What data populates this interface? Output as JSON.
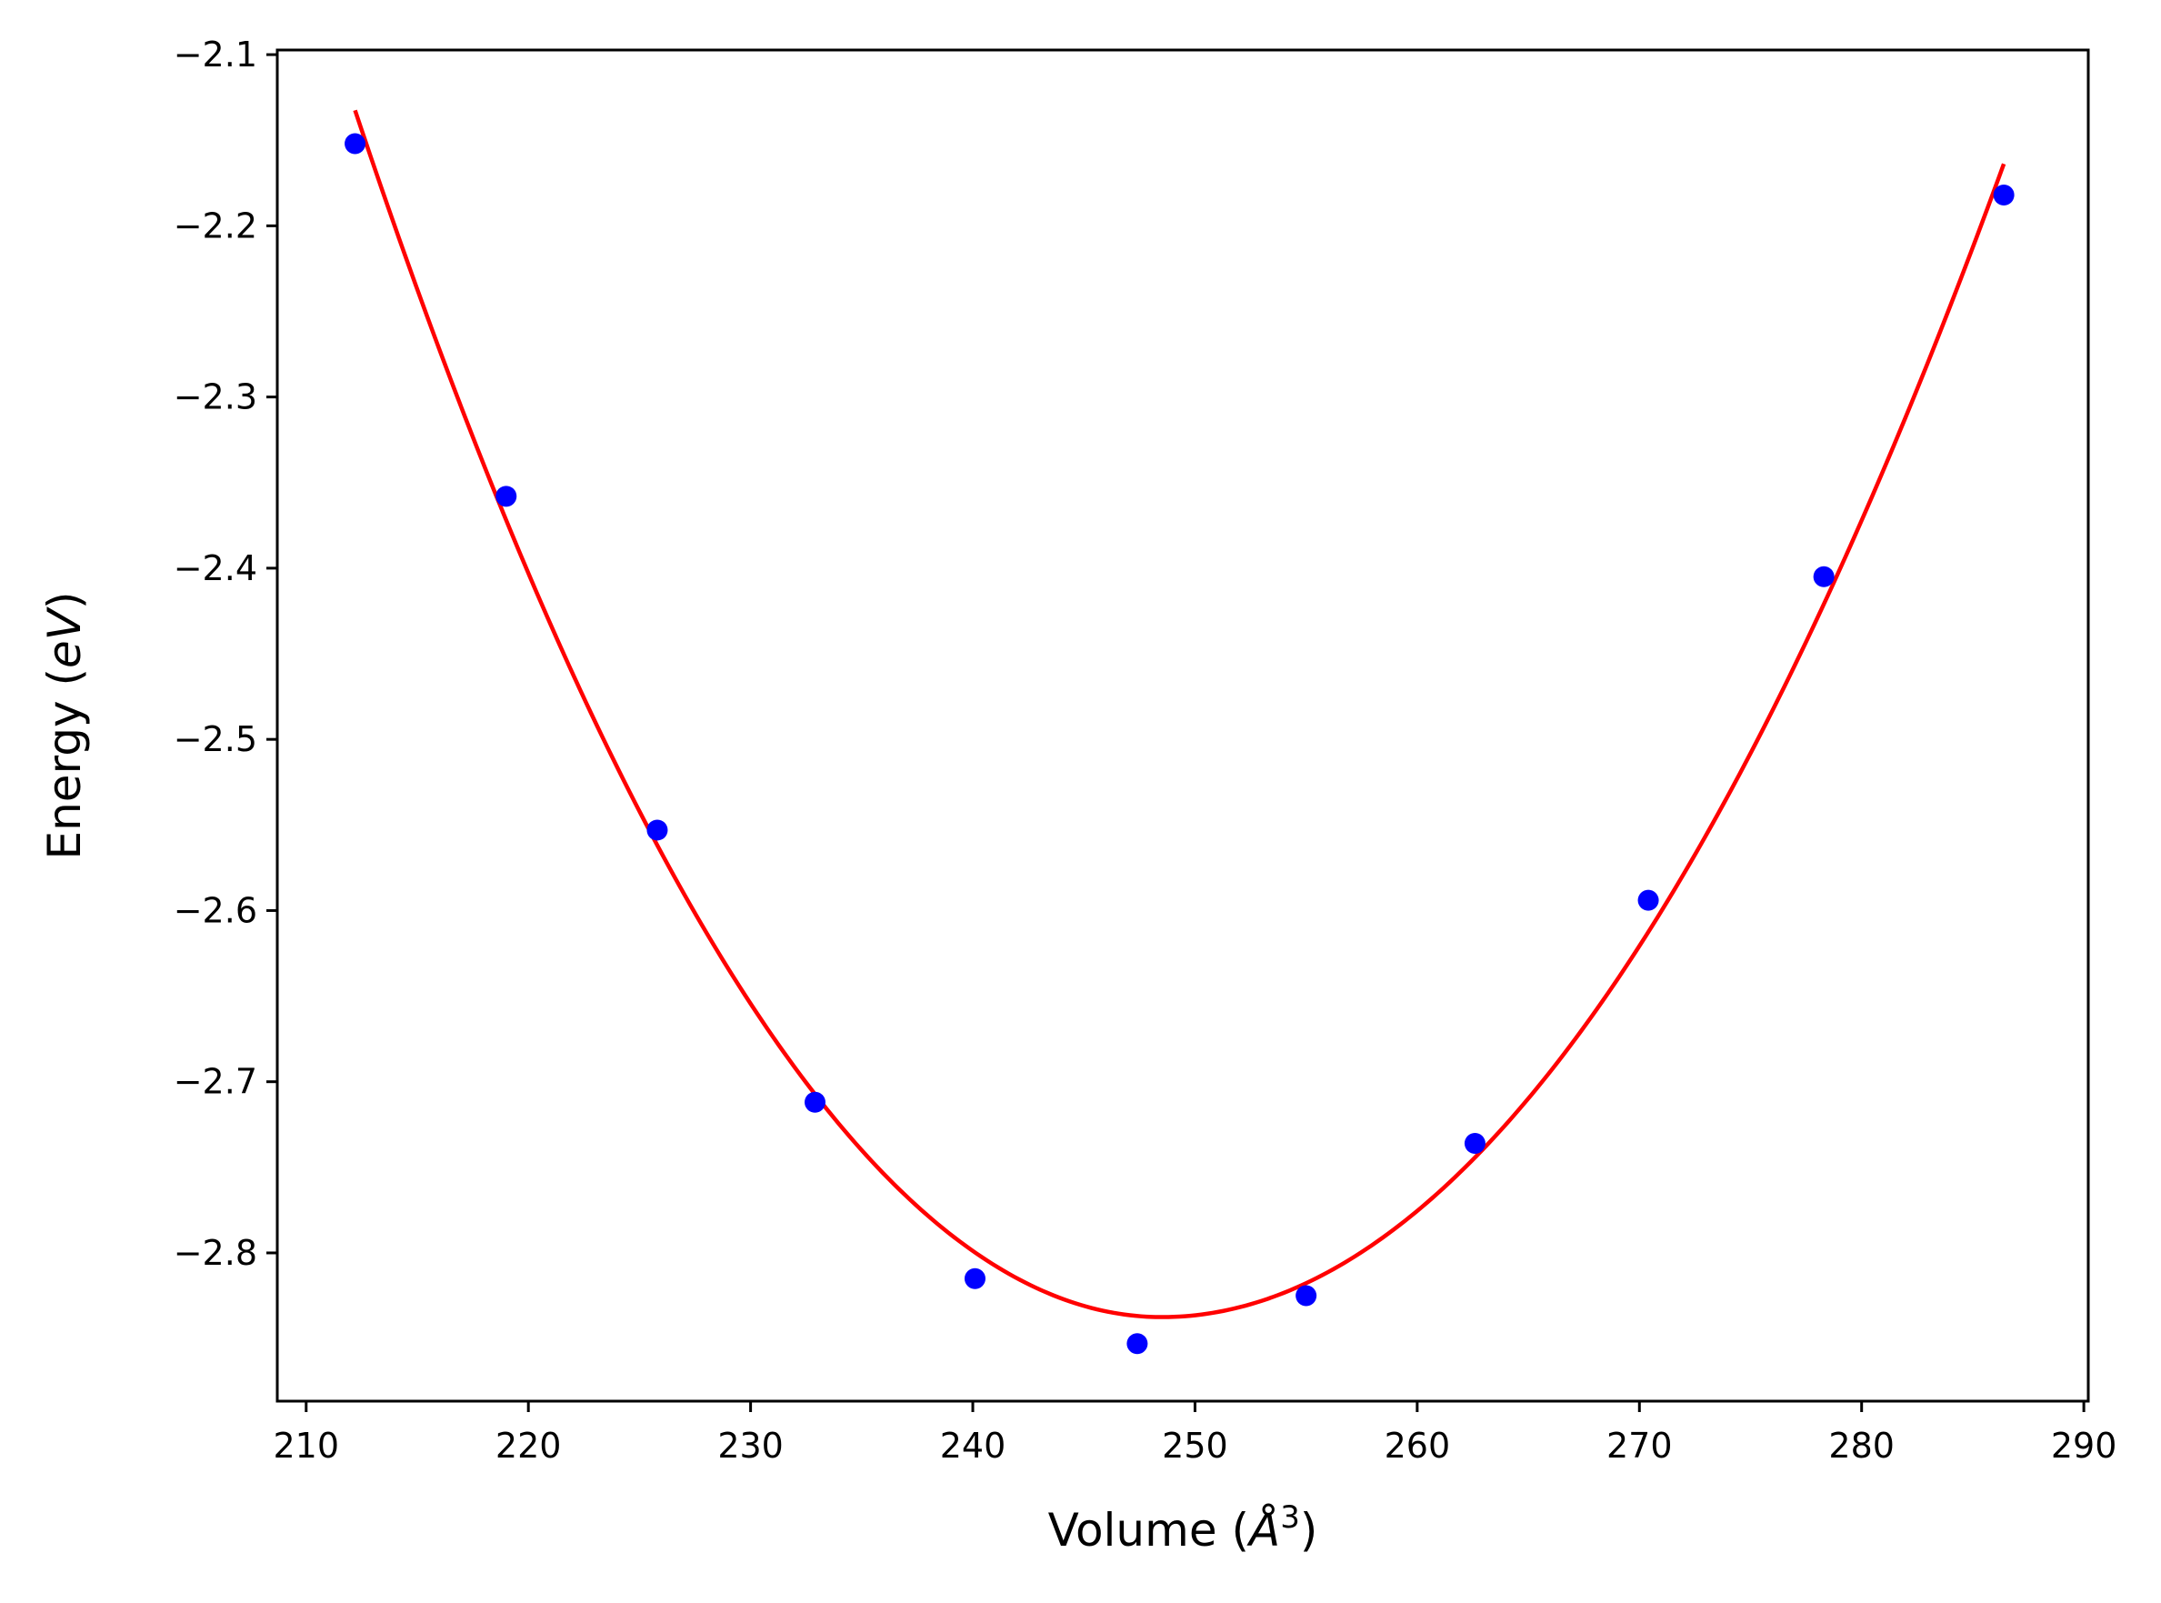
{
  "chart_data": {
    "type": "scatter",
    "title": "",
    "xlabel": {
      "prefix": "Volume (",
      "symbol": "Å",
      "sup": "3",
      "suffix": ")"
    },
    "ylabel": {
      "prefix": "Energy (",
      "italic": "eV",
      "suffix": ")"
    },
    "xlim": [
      208.7,
      290.2
    ],
    "ylim": [
      -2.8866,
      -2.0973
    ],
    "xticks": [
      210,
      220,
      230,
      240,
      250,
      260,
      270,
      280,
      290
    ],
    "xtick_labels": [
      "210",
      "220",
      "230",
      "240",
      "250",
      "260",
      "270",
      "280",
      "290"
    ],
    "yticks": [
      -2.1,
      -2.2,
      -2.3,
      -2.4,
      -2.5,
      -2.6,
      -2.7,
      -2.8
    ],
    "ytick_labels": [
      "−2.1",
      "−2.2",
      "−2.3",
      "−2.4",
      "−2.5",
      "−2.6",
      "−2.7",
      "−2.8"
    ],
    "grid": false,
    "series": [
      {
        "kind": "scatter",
        "color": "#0000ff",
        "x": [
          212.2,
          219.0,
          225.8,
          232.9,
          240.1,
          247.4,
          255.0,
          262.6,
          270.4,
          278.3,
          286.4
        ],
        "y": [
          -2.152,
          -2.358,
          -2.553,
          -2.712,
          -2.815,
          -2.853,
          -2.825,
          -2.736,
          -2.594,
          -2.405,
          -2.182
        ]
      },
      {
        "kind": "line",
        "color": "#ff0000",
        "x_range": [
          212.2,
          286.4
        ],
        "fit": {
          "vertex_x": 248.5,
          "vertex_y": -2.8375,
          "a_left": 0.000535,
          "a_right": 0.000469
        }
      }
    ]
  }
}
